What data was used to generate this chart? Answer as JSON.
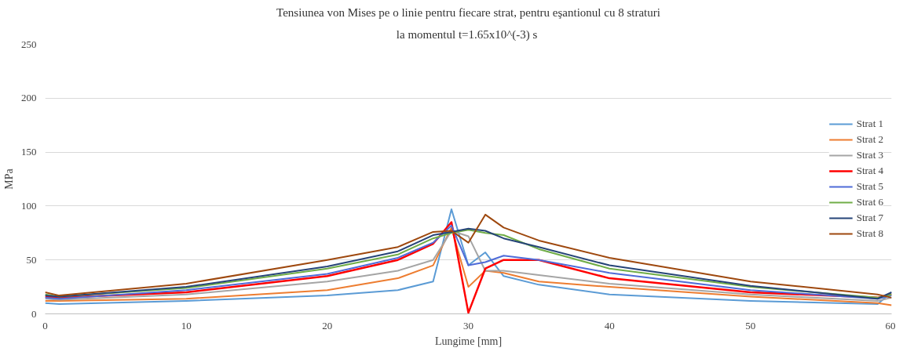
{
  "chart_data": {
    "type": "line",
    "title": "Tensiunea von Mises pe o linie pentru fiecare strat, pentru eşantionul cu 8 straturi",
    "subtitle": "la momentul t=1.65x10^(-3)  s",
    "xlabel": "Lungime [mm]",
    "ylabel": "MPa",
    "x": [
      0,
      1,
      10,
      20,
      25,
      27.5,
      28.8,
      30,
      31.2,
      32.5,
      35,
      40,
      50,
      59,
      60
    ],
    "xlim": [
      0,
      60
    ],
    "xticks": [
      0,
      10,
      20,
      30,
      40,
      50,
      60
    ],
    "ylim": [
      0,
      250
    ],
    "yticks": [
      0,
      50,
      100,
      150,
      200,
      250
    ],
    "grid": "y",
    "legend": "right",
    "line_style": "solid",
    "series": [
      {
        "name": "Strat 1",
        "color": "#5b9bd5",
        "values": [
          10,
          9,
          12,
          17,
          22,
          30,
          97,
          45,
          57,
          35,
          27,
          18,
          12,
          9,
          20
        ]
      },
      {
        "name": "Strat 2",
        "color": "#ed7d31",
        "values": [
          12,
          12,
          14,
          22,
          33,
          45,
          80,
          25,
          40,
          38,
          30,
          25,
          16,
          10,
          8
        ]
      },
      {
        "name": "Strat 3",
        "color": "#a5a5a5",
        "values": [
          14,
          13,
          18,
          30,
          40,
          50,
          77,
          72,
          40,
          40,
          36,
          28,
          18,
          12,
          15
        ]
      },
      {
        "name": "Strat 4",
        "color": "#ff0000",
        "values": [
          16,
          15,
          20,
          35,
          50,
          65,
          85,
          1,
          42,
          50,
          50,
          33,
          20,
          15,
          18
        ]
      },
      {
        "name": "Strat 5",
        "color": "#4f6bd8",
        "values": [
          15,
          14,
          22,
          37,
          52,
          66,
          82,
          45,
          48,
          54,
          50,
          38,
          22,
          14,
          17
        ]
      },
      {
        "name": "Strat 6",
        "color": "#70ad47",
        "values": [
          18,
          16,
          24,
          42,
          55,
          70,
          75,
          78,
          75,
          73,
          60,
          42,
          25,
          15,
          18
        ]
      },
      {
        "name": "Strat 7",
        "color": "#264478",
        "values": [
          17,
          16,
          25,
          44,
          58,
          73,
          76,
          79,
          77,
          70,
          62,
          45,
          26,
          14,
          20
        ]
      },
      {
        "name": "Strat 8",
        "color": "#9e480e",
        "values": [
          20,
          17,
          28,
          50,
          62,
          76,
          77,
          66,
          92,
          80,
          68,
          52,
          30,
          18,
          15
        ]
      }
    ]
  }
}
